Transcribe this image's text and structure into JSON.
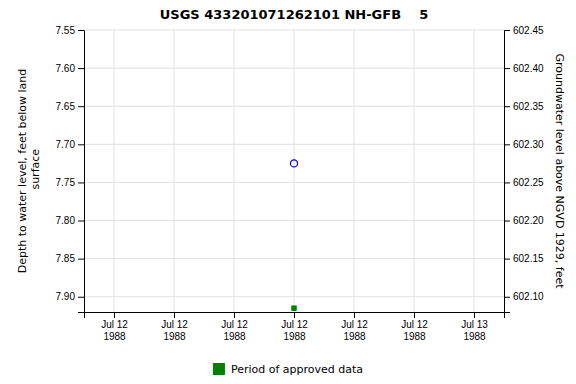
{
  "chart_data": {
    "type": "scatter",
    "title": "USGS 433201071262101 NH-GFB    5",
    "ylabel": "Depth to water level, feet below land\n surface",
    "y2label": "Groundwater level above NGVD 1929, feet",
    "categories": [
      "Jul 12\n1988",
      "Jul 12\n1988",
      "Jul 12\n1988",
      "Jul 12\n1988",
      "Jul 12\n1988",
      "Jul 12\n1988",
      "Jul 13\n1988"
    ],
    "series": [
      {
        "color": "#0000cc",
        "marker": "circle",
        "values": [
          null,
          null,
          null,
          7.725,
          null,
          null,
          null
        ]
      },
      {
        "name": "Period of approved data",
        "color": "#008000",
        "marker": "square",
        "values": [
          null,
          null,
          null,
          7.915,
          null,
          null,
          null
        ]
      }
    ],
    "ylim": [
      7.92,
      7.55
    ],
    "yticks": [
      7.55,
      {
        "value": 7.6,
        "label": "7.60"
      },
      7.65,
      {
        "value": 7.7,
        "label": "7.70"
      },
      7.75,
      {
        "value": 7.8,
        "label": "7.80"
      },
      7.85,
      {
        "value": 7.9,
        "label": "7.90"
      }
    ],
    "y2lim": [
      602.08,
      602.45
    ],
    "y2ticks": [
      602.45,
      {
        "value": 602.4,
        "label": "602.40"
      },
      602.35,
      {
        "value": 602.3,
        "label": "602.30"
      },
      602.25,
      {
        "value": 602.2,
        "label": "602.20"
      },
      602.15,
      {
        "value": 602.1,
        "label": "602.10"
      }
    ],
    "grid": true,
    "legend": "bottom"
  }
}
